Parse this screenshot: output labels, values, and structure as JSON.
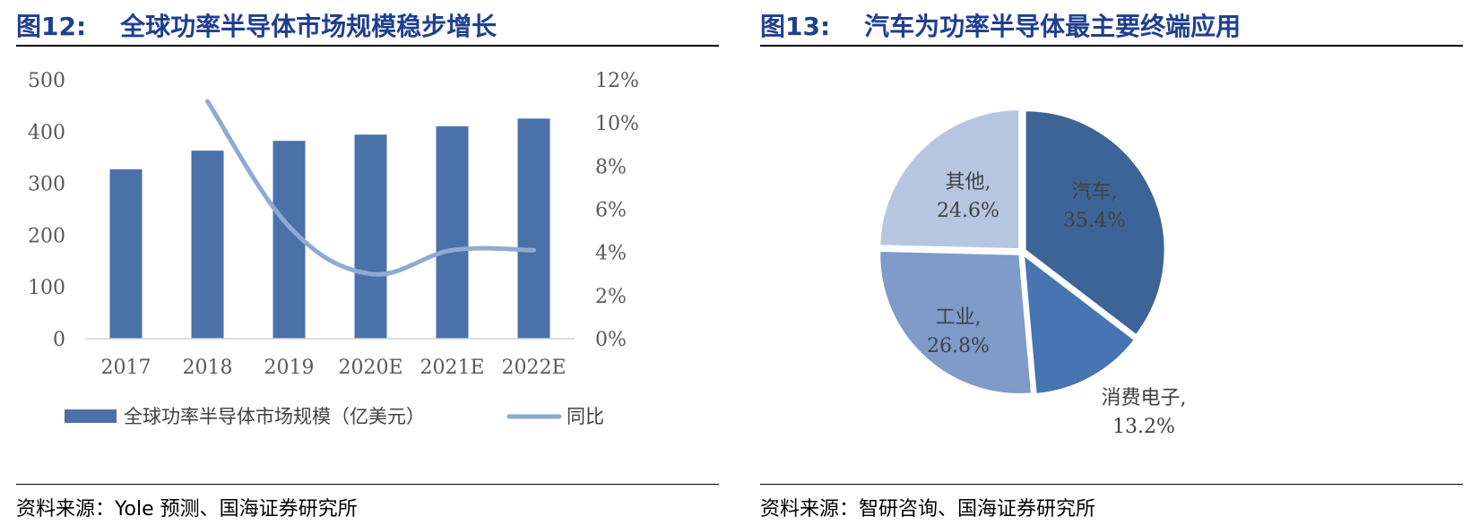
{
  "left": {
    "title_num": "图12:",
    "title_text": "全球功率半导体市场规模稳步增长",
    "source": "资料来源：Yole 预测、国海证券研究所"
  },
  "right": {
    "title_num": "图13:",
    "title_text": "汽车为功率半导体最主要终端应用",
    "source": "资料来源：智研咨询、国海证券研究所"
  },
  "chart_data": [
    {
      "type": "bar",
      "categories": [
        "2017",
        "2018",
        "2019",
        "2020E",
        "2021E",
        "2022E"
      ],
      "series": [
        {
          "name": "全球功率半导体市场规模（亿美元）",
          "type": "bar",
          "axis": "left",
          "values": [
            327,
            363,
            382,
            394,
            410,
            425
          ],
          "color": "#4a71a8"
        },
        {
          "name": "同比",
          "type": "line",
          "axis": "right",
          "values": [
            null,
            11.0,
            5.2,
            3.0,
            4.1,
            4.1
          ],
          "color": "#8faad3"
        }
      ],
      "ylim": [
        0,
        500
      ],
      "yticks": [
        "0",
        "100",
        "200",
        "300",
        "400",
        "500"
      ],
      "y2lim": [
        0,
        12
      ],
      "y2ticks": [
        "0%",
        "2%",
        "4%",
        "6%",
        "8%",
        "10%",
        "12%"
      ],
      "legend": "bottom"
    },
    {
      "type": "pie",
      "slices": [
        {
          "label": "汽车,",
          "value_text": "35.4%",
          "value": 35.4,
          "color": "#3d6497"
        },
        {
          "label": "消费电子,",
          "value_text": "13.2%",
          "value": 13.2,
          "color": "#4675b2"
        },
        {
          "label": "工业,",
          "value_text": "26.8%",
          "value": 26.8,
          "color": "#7e9bc9"
        },
        {
          "label": "其他,",
          "value_text": "24.6%",
          "value": 24.6,
          "color": "#b7c6e0"
        }
      ]
    }
  ]
}
